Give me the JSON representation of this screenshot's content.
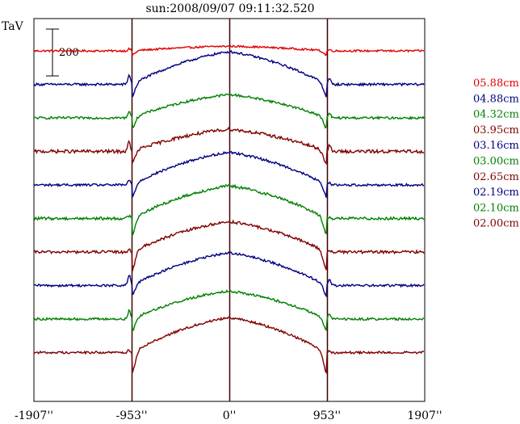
{
  "chart_data": {
    "type": "line",
    "title": "sun:2008/09/07 09:11:32.520",
    "ylabel": "TaV",
    "scale_bar_label": "200",
    "xlim": [
      -1907,
      1907
    ],
    "x_ticks": [
      {
        "value": -1907,
        "label": "-1907''"
      },
      {
        "value": -953,
        "label": "-953''"
      },
      {
        "value": 0,
        "label": "0''"
      },
      {
        "value": 953,
        "label": "953''"
      },
      {
        "value": 1907,
        "label": "1907''"
      }
    ],
    "vertical_markers": [
      -953,
      0,
      953
    ],
    "legend_position": "right",
    "series": [
      {
        "name": "05.88cm",
        "color": "#e00000",
        "baseline": 0,
        "disk_rise": 20,
        "limb_dip": 20,
        "edge_spike": 8,
        "noise": 4
      },
      {
        "name": "04.88cm",
        "color": "#000080",
        "baseline": 0,
        "disk_rise": 140,
        "limb_dip": 60,
        "edge_spike": 40,
        "noise": 5
      },
      {
        "name": "04.32cm",
        "color": "#008000",
        "baseline": 0,
        "disk_rise": 100,
        "limb_dip": 50,
        "edge_spike": 30,
        "noise": 5
      },
      {
        "name": "03.95cm",
        "color": "#800000",
        "baseline": 0,
        "disk_rise": 95,
        "limb_dip": 60,
        "edge_spike": 40,
        "noise": 7
      },
      {
        "name": "03.16cm",
        "color": "#000080",
        "baseline": 0,
        "disk_rise": 140,
        "limb_dip": 60,
        "edge_spike": 20,
        "noise": 5
      },
      {
        "name": "03.00cm",
        "color": "#008000",
        "baseline": 0,
        "disk_rise": 140,
        "limb_dip": 80,
        "edge_spike": 12,
        "noise": 6
      },
      {
        "name": "02.65cm",
        "color": "#800000",
        "baseline": 0,
        "disk_rise": 130,
        "limb_dip": 90,
        "edge_spike": 10,
        "noise": 6
      },
      {
        "name": "02.19cm",
        "color": "#000080",
        "baseline": 0,
        "disk_rise": 140,
        "limb_dip": 50,
        "edge_spike": 45,
        "noise": 5
      },
      {
        "name": "02.10cm",
        "color": "#008000",
        "baseline": 0,
        "disk_rise": 120,
        "limb_dip": 60,
        "edge_spike": 35,
        "noise": 5
      },
      {
        "name": "02.00cm",
        "color": "#800000",
        "baseline": 0,
        "disk_rise": 150,
        "limb_dip": 100,
        "edge_spike": 10,
        "noise": 5
      }
    ]
  }
}
